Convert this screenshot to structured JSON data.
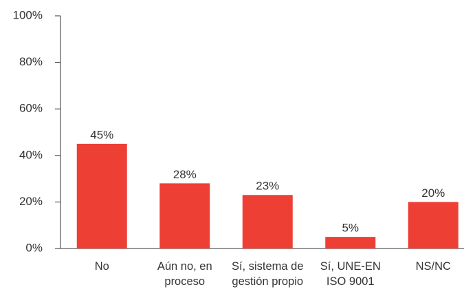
{
  "chart_data": {
    "type": "bar",
    "categories": [
      "No",
      "Aún no, en proceso",
      "Sí, sistema de gestión propio",
      "Sí, UNE-EN ISO 9001",
      "NS/NC"
    ],
    "values": [
      45,
      28,
      23,
      5,
      20
    ],
    "value_labels": [
      "45%",
      "28%",
      "23%",
      "5%",
      "20%"
    ],
    "color": "#ee3f35",
    "ylim": [
      0,
      100
    ],
    "yticks": [
      {
        "value": 0,
        "label": "0%"
      },
      {
        "value": 20,
        "label": "20%"
      },
      {
        "value": 40,
        "label": "40%"
      },
      {
        "value": 60,
        "label": "60%"
      },
      {
        "value": 80,
        "label": "80%"
      },
      {
        "value": 100,
        "label": "100%"
      }
    ],
    "grid": false
  }
}
